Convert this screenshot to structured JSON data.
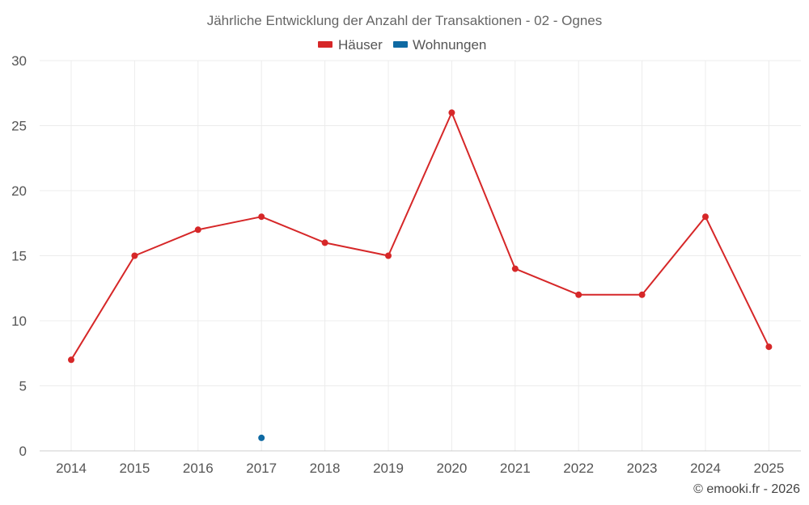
{
  "chart_data": {
    "type": "line",
    "title": "Jährliche Entwicklung der Anzahl der Transaktionen - 02 - Ognes",
    "xlabel": "",
    "ylabel": "",
    "categories": [
      "2014",
      "2015",
      "2016",
      "2017",
      "2018",
      "2019",
      "2020",
      "2021",
      "2022",
      "2023",
      "2024",
      "2025"
    ],
    "ylim": [
      0,
      30
    ],
    "yticks": [
      "0",
      "5",
      "10",
      "15",
      "20",
      "25",
      "30"
    ],
    "grid": true,
    "legend_position": "top-center",
    "series": [
      {
        "name": "Häuser",
        "color": "#d62728",
        "values": [
          7,
          15,
          17,
          18,
          16,
          15,
          26,
          14,
          12,
          12,
          18,
          8
        ]
      },
      {
        "name": "Wohnungen",
        "color": "#0f6aa3",
        "values": [
          null,
          null,
          null,
          1,
          null,
          null,
          null,
          null,
          null,
          null,
          null,
          null
        ]
      }
    ]
  },
  "credit": "© emooki.fr - 2026"
}
